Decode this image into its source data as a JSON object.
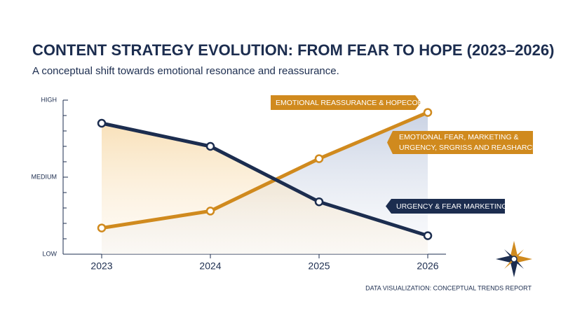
{
  "chart_data": {
    "type": "line",
    "title": "CONTENT STRATEGY EVOLUTION: FROM FEAR TO HOPE (2023–2026)",
    "subtitle": "A conceptual shift towards emotional resonance and reassurance.",
    "categories": [
      "2023",
      "2024",
      "2025",
      "2026"
    ],
    "series": [
      {
        "color": "#d08a1e",
        "values": [
          1.7,
          2.8,
          6.2,
          9.2
        ]
      },
      {
        "color": "#1c2d4f",
        "values": [
          8.5,
          7.0,
          3.4,
          1.2
        ]
      }
    ],
    "ylim": [
      0,
      10
    ],
    "yticks": [
      {
        "value": 0,
        "label": "LOW"
      },
      {
        "value": 5,
        "label": "MEDIUM"
      },
      {
        "value": 10,
        "label": "HIGH"
      }
    ],
    "yminor": [
      1,
      2,
      3,
      4,
      6,
      7,
      8,
      9
    ],
    "area": true,
    "annotations": [
      {
        "text": "EMOTIONAL REASSURANCE & HOPECORE",
        "color": "#d08a1e"
      },
      {
        "lines": [
          "EMOTIONAL FEAR, MARKETING &",
          "URGENCY, SRGRISS AND REASHARCE"
        ],
        "color": "#d08a1e"
      },
      {
        "text": "URGENCY & FEAR MARKETING",
        "color": "#1c2d4f"
      }
    ],
    "footer": "DATA VISUALIZATION: CONCEPTUAL TRENDS REPORT"
  }
}
